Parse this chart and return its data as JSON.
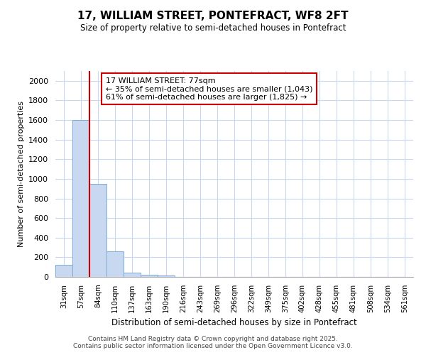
{
  "title": "17, WILLIAM STREET, PONTEFRACT, WF8 2FT",
  "subtitle": "Size of property relative to semi-detached houses in Pontefract",
  "xlabel": "Distribution of semi-detached houses by size in Pontefract",
  "ylabel": "Number of semi-detached properties",
  "categories": [
    "31sqm",
    "57sqm",
    "84sqm",
    "110sqm",
    "137sqm",
    "163sqm",
    "190sqm",
    "216sqm",
    "243sqm",
    "269sqm",
    "296sqm",
    "322sqm",
    "349sqm",
    "375sqm",
    "402sqm",
    "428sqm",
    "455sqm",
    "481sqm",
    "508sqm",
    "534sqm",
    "561sqm"
  ],
  "values": [
    120,
    1600,
    950,
    260,
    40,
    25,
    18,
    0,
    0,
    0,
    0,
    0,
    0,
    0,
    0,
    0,
    0,
    0,
    0,
    0,
    0
  ],
  "bar_color": "#c8d8f0",
  "bar_edge_color": "#7bacd4",
  "vline_color": "#cc0000",
  "annotation_title": "17 WILLIAM STREET: 77sqm",
  "annotation_line1": "← 35% of semi-detached houses are smaller (1,043)",
  "annotation_line2": "61% of semi-detached houses are larger (1,825) →",
  "annotation_box_edgecolor": "#cc0000",
  "ylim": [
    0,
    2100
  ],
  "yticks": [
    0,
    200,
    400,
    600,
    800,
    1000,
    1200,
    1400,
    1600,
    1800,
    2000
  ],
  "bg_color": "#ffffff",
  "grid_color": "#c8d8f0",
  "footer1": "Contains HM Land Registry data © Crown copyright and database right 2025.",
  "footer2": "Contains public sector information licensed under the Open Government Licence v3.0."
}
